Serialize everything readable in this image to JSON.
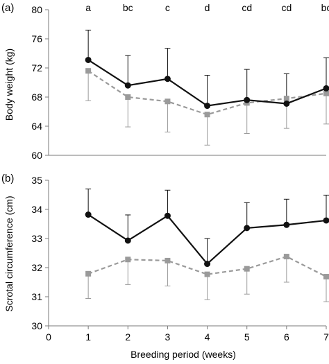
{
  "chart_data": [
    {
      "type": "line",
      "panel_label": "(a)",
      "ylabel": "Body weight (kg)",
      "xlabel": "",
      "xlim": [
        0,
        7
      ],
      "ylim": [
        60,
        80
      ],
      "yticks": [
        60,
        64,
        68,
        72,
        76,
        80
      ],
      "x": [
        1,
        2,
        3,
        4,
        5,
        6,
        7
      ],
      "letters": [
        "a",
        "bc",
        "c",
        "d",
        "cd",
        "cd",
        "bc"
      ],
      "grid": false,
      "series": [
        {
          "style": "solid",
          "marker": "circle",
          "color": "#111111",
          "values": [
            73.1,
            69.6,
            70.5,
            66.8,
            67.6,
            67.1,
            69.2
          ],
          "err_plus": [
            4.1,
            4.1,
            4.2,
            4.2,
            4.2,
            4.1,
            4.2
          ],
          "err_dir": "up"
        },
        {
          "style": "dashed",
          "marker": "square",
          "color": "#9a9a9a",
          "values": [
            71.6,
            68.0,
            67.4,
            65.6,
            67.2,
            67.8,
            68.5
          ],
          "err_plus": [
            4.1,
            4.1,
            4.2,
            4.2,
            4.2,
            4.1,
            4.2
          ],
          "err_dir": "down"
        }
      ]
    },
    {
      "type": "line",
      "panel_label": "(b)",
      "ylabel": "Scrotal circumference (cm)",
      "xlabel": "Breeding period (weeks)",
      "xlim": [
        0,
        7
      ],
      "ylim": [
        30,
        35
      ],
      "yticks": [
        30,
        31,
        32,
        33,
        34,
        35
      ],
      "xticks": [
        0,
        1,
        2,
        3,
        4,
        5,
        6,
        7
      ],
      "x": [
        1,
        2,
        3,
        4,
        5,
        6,
        7
      ],
      "grid": false,
      "series": [
        {
          "style": "solid",
          "marker": "circle",
          "color": "#111111",
          "values": [
            33.82,
            32.93,
            33.78,
            32.13,
            33.36,
            33.47,
            33.62
          ],
          "err_plus": [
            0.88,
            0.88,
            0.88,
            0.87,
            0.87,
            0.88,
            0.87
          ],
          "err_dir": "up"
        },
        {
          "style": "dashed",
          "marker": "square",
          "color": "#9a9a9a",
          "values": [
            31.79,
            32.28,
            32.24,
            31.77,
            31.96,
            32.38,
            31.69
          ],
          "err_plus": [
            0.85,
            0.86,
            0.87,
            0.87,
            0.87,
            0.88,
            0.86
          ],
          "err_dir": "down"
        }
      ]
    }
  ]
}
